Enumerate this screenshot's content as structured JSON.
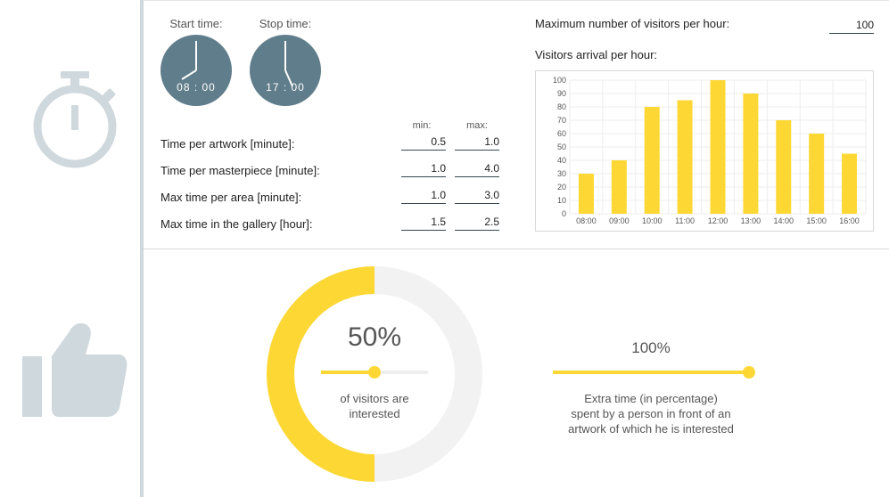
{
  "clocks": {
    "start_label": "Start time:",
    "start_time": "08 : 00",
    "stop_label": "Stop time:",
    "stop_time": "17 : 00"
  },
  "params": {
    "min_header": "min:",
    "max_header": "max:",
    "rows": [
      {
        "label": "Time per artwork [minute]:",
        "min": "0.5",
        "max": "1.0"
      },
      {
        "label": "Time per masterpiece [minute]:",
        "min": "1.0",
        "max": "4.0"
      },
      {
        "label": "Max time per area [minute]:",
        "min": "1.0",
        "max": "3.0"
      },
      {
        "label": "Max time in the gallery [hour]:",
        "min": "1.5",
        "max": "2.5"
      }
    ]
  },
  "visitors": {
    "max_label": "Maximum number of visitors per hour:",
    "max_value": "100",
    "arrival_label": "Visitors arrival per hour:"
  },
  "chart_data": {
    "type": "bar",
    "categories": [
      "08:00",
      "09:00",
      "10:00",
      "11:00",
      "12:00",
      "13:00",
      "14:00",
      "15:00",
      "16:00"
    ],
    "values": [
      30,
      40,
      80,
      85,
      100,
      90,
      70,
      60,
      45
    ],
    "ylim": [
      0,
      100
    ],
    "yticks": [
      "0",
      "10",
      "20",
      "30",
      "40",
      "50",
      "60",
      "70",
      "80",
      "90",
      "100"
    ],
    "grid": true,
    "bar_color": "#fdd835"
  },
  "interest": {
    "percent": "50%",
    "fraction": 0.5,
    "description_line1": "of visitors are",
    "description_line2": "interested"
  },
  "extra_time": {
    "percent": "100%",
    "fraction": 1.0,
    "description_line1": "Extra time (in percentage)",
    "description_line2": "spent by a person in front of an",
    "description_line3": "artwork of which he is interested"
  },
  "icons": {
    "stopwatch": "stopwatch-icon",
    "thumbs_up": "thumbs-up-icon"
  },
  "colors": {
    "accent": "#fdd835",
    "clock": "#607d8b",
    "icon": "#cfd8dc",
    "track": "#f2f2f2"
  }
}
